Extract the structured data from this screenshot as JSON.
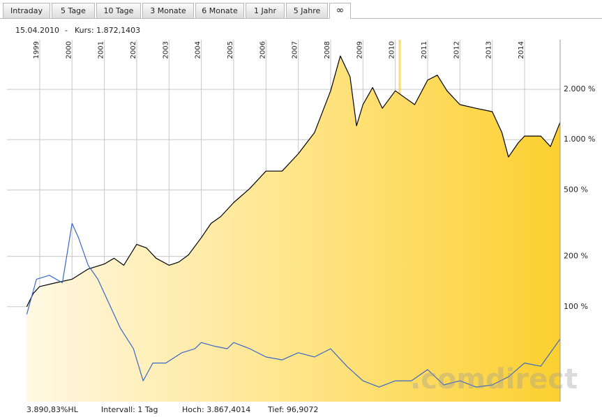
{
  "tabs": [
    "Intraday",
    "5 Tage",
    "10 Tage",
    "3 Monate",
    "6 Monate",
    "1 Jahr",
    "5 Jahre",
    "∞"
  ],
  "info": {
    "date": "15.04.2010",
    "separator": "-",
    "price": "Kurs: 1.872,1403"
  },
  "footer": {
    "change": "3.890,83%HL",
    "interval": "Intervall: 1 Tag",
    "high": "Hoch: 3.867,4014",
    "low": "Tief: 96,9072"
  },
  "chart_data": {
    "type": "line",
    "watermark": ".comdirect",
    "log_scale": true,
    "grid": true,
    "xlim": [
      1998.57,
      2015.1
    ],
    "xticks": [
      1999,
      2000,
      2001,
      2002,
      2003,
      2004,
      2005,
      2006,
      2007,
      2008,
      2009,
      2010,
      2011,
      2012,
      2013,
      2014
    ],
    "ylim": [
      27,
      3960
    ],
    "yticks": [
      {
        "value": 100,
        "label": "100 %"
      },
      {
        "value": 200,
        "label": "200 %"
      },
      {
        "value": 500,
        "label": "500 %"
      },
      {
        "value": 1000,
        "label": "1.000 %"
      },
      {
        "value": 2000,
        "label": "2.000 %"
      }
    ],
    "series": [
      {
        "color": "#000000",
        "fill": true,
        "x": [
          1998.6,
          1998.8,
          1999.0,
          1999.5,
          2000.0,
          2000.5,
          2001.0,
          2001.3,
          2001.6,
          2002.0,
          2002.3,
          2002.6,
          2003.0,
          2003.3,
          2003.6,
          2004.0,
          2004.3,
          2004.6,
          2005.0,
          2005.5,
          2006.0,
          2006.5,
          2007.0,
          2007.5,
          2008.0,
          2008.3,
          2008.6,
          2008.8,
          2009.0,
          2009.3,
          2009.6,
          2010.0,
          2010.3,
          2010.6,
          2011.0,
          2011.3,
          2011.6,
          2012.0,
          2012.5,
          2013.0,
          2013.3,
          2013.5,
          2013.8,
          2014.0,
          2014.5,
          2014.8,
          2015.1
        ],
        "values": [
          100,
          120,
          132,
          139,
          146,
          168,
          180,
          195,
          177,
          236,
          225,
          195,
          177,
          185,
          204,
          259,
          315,
          346,
          420,
          510,
          648,
          648,
          823,
          1100,
          1960,
          3170,
          2380,
          1210,
          1620,
          2050,
          1540,
          1960,
          1780,
          1620,
          2270,
          2430,
          1960,
          1620,
          1540,
          1470,
          1100,
          786,
          955,
          1050,
          1050,
          908,
          1270
        ]
      },
      {
        "color": "#3a66c4",
        "fill": false,
        "x": [
          1998.6,
          1998.9,
          1999.3,
          1999.7,
          2000.0,
          2000.2,
          2000.5,
          2000.8,
          2001.1,
          2001.5,
          2001.9,
          2002.2,
          2002.5,
          2002.9,
          2003.4,
          2003.8,
          2004.0,
          2004.4,
          2004.8,
          2005.0,
          2005.5,
          2006.0,
          2006.5,
          2007.0,
          2007.5,
          2008.0,
          2008.5,
          2009.0,
          2009.5,
          2010.0,
          2010.5,
          2011.0,
          2011.5,
          2012.0,
          2012.5,
          2013.0,
          2013.5,
          2014.0,
          2014.5,
          2015.1
        ],
        "values": [
          90,
          146,
          154,
          139,
          315,
          259,
          177,
          146,
          109,
          74,
          56,
          36,
          46,
          46,
          53,
          56,
          61,
          58,
          56,
          61,
          56,
          50,
          48,
          53,
          50,
          56,
          44,
          36,
          33,
          36,
          36,
          42,
          34,
          36,
          33,
          34,
          38,
          46,
          44,
          64
        ]
      }
    ]
  }
}
